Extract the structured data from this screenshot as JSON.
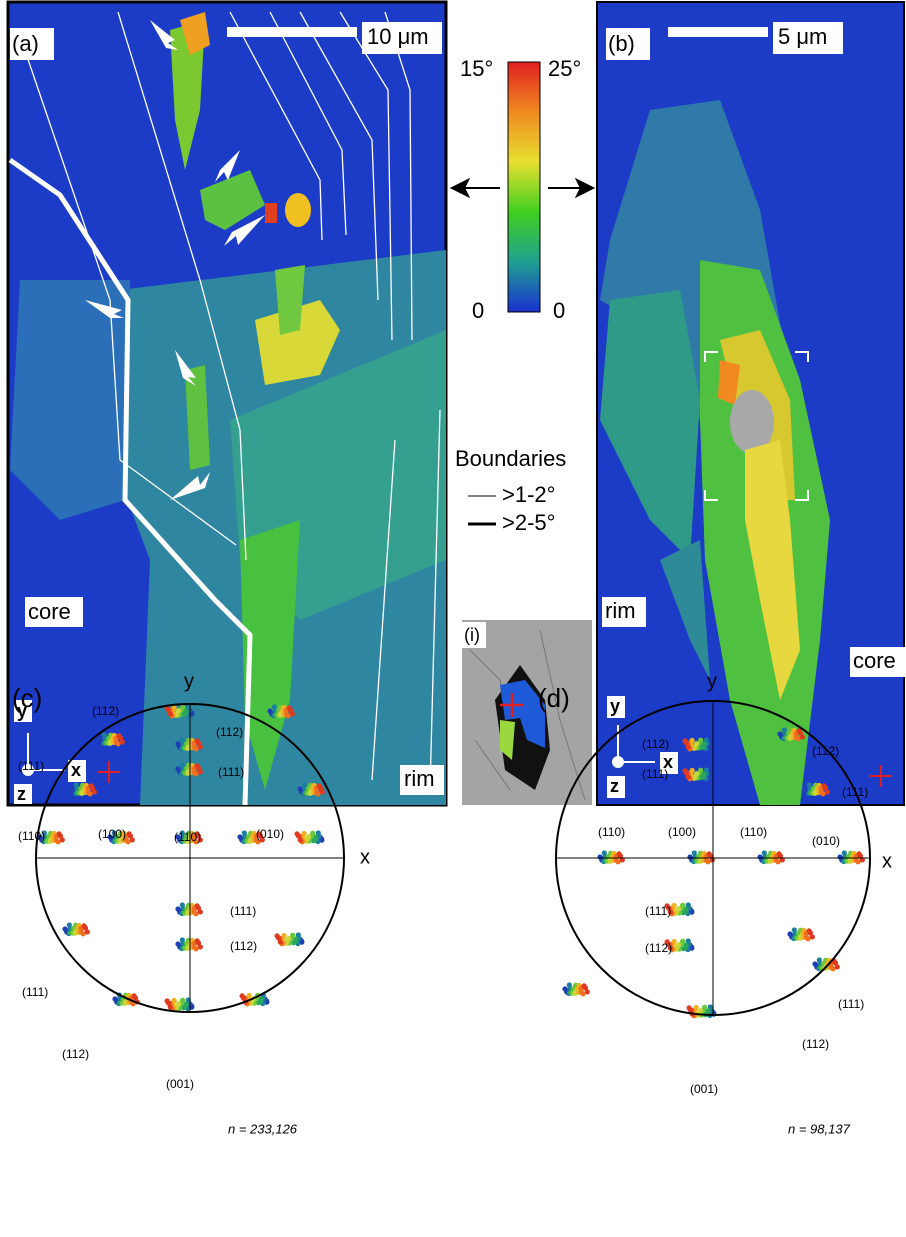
{
  "panel_a": {
    "label": "(a)",
    "scale_bar": "10 μm",
    "region_left": "core",
    "region_right": "rim",
    "axis_y": "y",
    "axis_x": "x",
    "axis_z": "z"
  },
  "color_scale": {
    "left_top": "15°",
    "right_top": "25°",
    "left_bottom": "0",
    "right_bottom": "0"
  },
  "boundaries": {
    "title": "Boundaries",
    "thin": ">1-2°",
    "thick": ">2-5°"
  },
  "inset": {
    "label": "(i)"
  },
  "panel_b": {
    "label": "(b)",
    "scale_bar": "5 μm",
    "region_left": "rim",
    "region_right": "core",
    "axis_y": "y",
    "axis_x": "x",
    "axis_z": "z"
  },
  "pole_figures": [
    {
      "label": "(c)",
      "axis_y": "y",
      "axis_x": "x",
      "poles": [
        "(112)",
        "(111)",
        "(112)",
        "(111)",
        "(110)",
        "(100)",
        "(110)",
        "(010)",
        "(111)",
        "(112)",
        "(111)",
        "(112)",
        "(001)"
      ],
      "count": "n = 233,126"
    },
    {
      "label": "(d)",
      "axis_y": "y",
      "axis_x": "x",
      "poles": [
        "(112)",
        "(111)",
        "(112)",
        "(111)",
        "(110)",
        "(100)",
        "(110)",
        "(010)",
        "(111)",
        "(112)",
        "(111)",
        "(112)",
        "(001)"
      ],
      "count": "n = 98,137"
    }
  ]
}
